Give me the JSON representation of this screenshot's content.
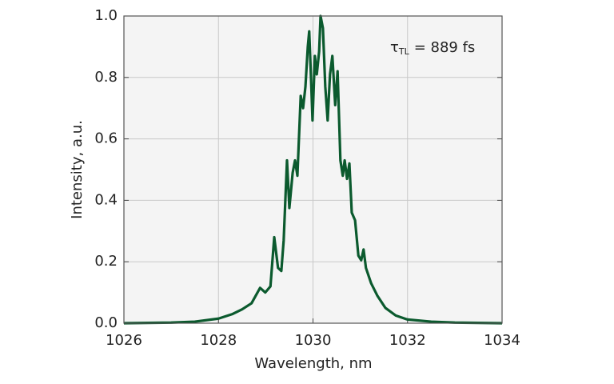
{
  "chart_data": {
    "type": "line",
    "x_label": "Wavelength, nm",
    "y_label": "Intensity, a.u.",
    "annotation": {
      "symbol": "τ",
      "subscript": "TL",
      "text": "= 889 fs"
    },
    "xlim": [
      1026,
      1034
    ],
    "ylim": [
      0,
      1
    ],
    "xticks": [
      1026,
      1028,
      1030,
      1032,
      1034
    ],
    "yticks": [
      {
        "value": 0,
        "label": "0.0"
      },
      0.2,
      0.4,
      0.6,
      0.8,
      {
        "value": 1,
        "label": "1.0"
      }
    ],
    "grid": true,
    "background": "#f4f4f4",
    "series": [
      {
        "color": "#0b5a2e",
        "x": [
          1026,
          1027,
          1027.5,
          1028,
          1028.3,
          1028.5,
          1028.7,
          1028.88,
          1028.99,
          1029.1,
          1029.18,
          1029.26,
          1029.33,
          1029.38,
          1029.45,
          1029.5,
          1029.57,
          1029.62,
          1029.67,
          1029.74,
          1029.79,
          1029.84,
          1029.89,
          1029.92,
          1029.96,
          1029.99,
          1030.04,
          1030.08,
          1030.13,
          1030.16,
          1030.21,
          1030.26,
          1030.31,
          1030.36,
          1030.41,
          1030.47,
          1030.52,
          1030.58,
          1030.63,
          1030.67,
          1030.72,
          1030.77,
          1030.82,
          1030.89,
          1030.96,
          1031.02,
          1031.07,
          1031.12,
          1031.23,
          1031.36,
          1031.53,
          1031.75,
          1032,
          1032.5,
          1033,
          1034
        ],
        "values": [
          0,
          0.002,
          0.005,
          0.015,
          0.03,
          0.045,
          0.065,
          0.115,
          0.1,
          0.12,
          0.28,
          0.18,
          0.17,
          0.27,
          0.53,
          0.375,
          0.49,
          0.53,
          0.48,
          0.74,
          0.7,
          0.77,
          0.9,
          0.95,
          0.79,
          0.66,
          0.87,
          0.81,
          0.885,
          1,
          0.96,
          0.77,
          0.66,
          0.81,
          0.87,
          0.71,
          0.82,
          0.53,
          0.48,
          0.53,
          0.47,
          0.52,
          0.36,
          0.335,
          0.22,
          0.205,
          0.24,
          0.18,
          0.13,
          0.09,
          0.05,
          0.025,
          0.012,
          0.005,
          0.002,
          0
        ]
      }
    ]
  }
}
